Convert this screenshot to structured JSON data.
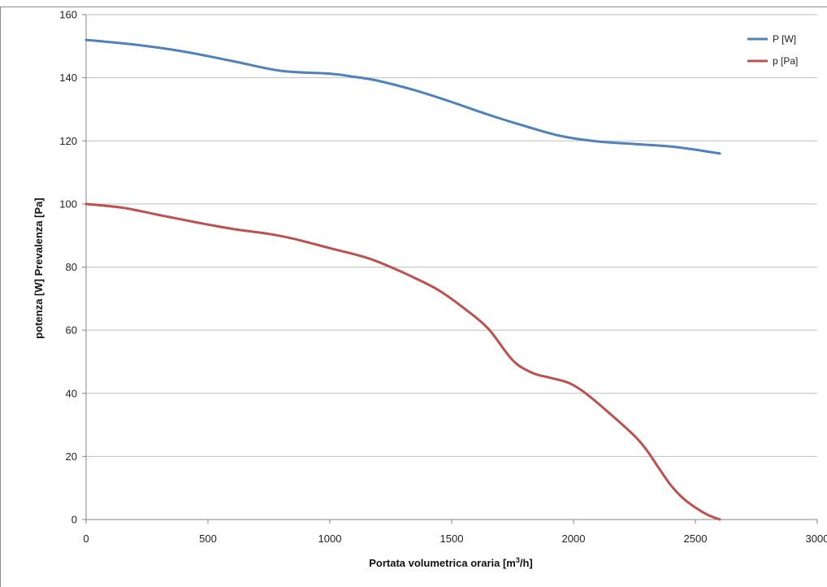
{
  "chart_data": {
    "type": "line",
    "title": "",
    "xlabel_main": "Portata volumetrica oraria [m",
    "xlabel_sup": "3",
    "xlabel_tail": "/h]",
    "ylabel": "potenza [W] Prevalenza [Pa]",
    "xlim": [
      0,
      3000
    ],
    "ylim": [
      0,
      160
    ],
    "xticks": [
      0,
      500,
      1000,
      1500,
      2000,
      2500,
      3000
    ],
    "yticks": [
      0,
      20,
      40,
      60,
      80,
      100,
      120,
      140,
      160
    ],
    "grid": "horizontal",
    "legend_position": "top-right",
    "series": [
      {
        "name": "P [W]",
        "color": "#4f81bd",
        "points": [
          [
            0,
            152
          ],
          [
            200,
            150.5
          ],
          [
            400,
            148.3
          ],
          [
            600,
            145.3
          ],
          [
            800,
            142.2
          ],
          [
            1000,
            141.3
          ],
          [
            1100,
            140.3
          ],
          [
            1200,
            139
          ],
          [
            1350,
            136
          ],
          [
            1500,
            132.3
          ],
          [
            1650,
            128.3
          ],
          [
            1800,
            124.7
          ],
          [
            1950,
            121.5
          ],
          [
            2100,
            119.8
          ],
          [
            2250,
            119
          ],
          [
            2400,
            118.2
          ],
          [
            2500,
            117.2
          ],
          [
            2600,
            116
          ]
        ]
      },
      {
        "name": "p [Pa]",
        "color": "#c0504d",
        "points": [
          [
            0,
            100
          ],
          [
            150,
            98.8
          ],
          [
            300,
            96.5
          ],
          [
            450,
            94.2
          ],
          [
            600,
            92.1
          ],
          [
            750,
            90.5
          ],
          [
            850,
            89
          ],
          [
            1000,
            86
          ],
          [
            1150,
            83
          ],
          [
            1250,
            80
          ],
          [
            1350,
            76.5
          ],
          [
            1450,
            72.5
          ],
          [
            1550,
            67
          ],
          [
            1650,
            60.5
          ],
          [
            1750,
            50.5
          ],
          [
            1830,
            46.5
          ],
          [
            1900,
            45
          ],
          [
            1980,
            43.3
          ],
          [
            2050,
            40
          ],
          [
            2150,
            33.5
          ],
          [
            2250,
            26.5
          ],
          [
            2300,
            22
          ],
          [
            2350,
            16.3
          ],
          [
            2400,
            10.8
          ],
          [
            2450,
            6.7
          ],
          [
            2500,
            3.8
          ],
          [
            2550,
            1.5
          ],
          [
            2600,
            0
          ]
        ]
      }
    ]
  }
}
